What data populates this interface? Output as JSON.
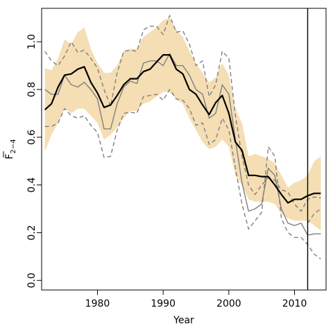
{
  "chart_data": {
    "type": "line",
    "title": "",
    "xlabel": "Year",
    "ylabel": "F",
    "ylabel_overline": true,
    "ylabel_subscript": "2−4",
    "xlim": [
      1971.5,
      2014.8
    ],
    "ylim": [
      -0.04,
      1.14
    ],
    "xticks": [
      1980,
      1990,
      2000,
      2010
    ],
    "yticks": [
      0.0,
      0.2,
      0.4,
      0.6,
      0.8,
      1.0
    ],
    "grid": false,
    "legend": "none",
    "vline": {
      "x": 2012,
      "color": "#000000"
    },
    "colors": {
      "band": "#f5deb3",
      "median": "#000000",
      "grey": "#7f7f7f"
    },
    "x": [
      1972,
      1973,
      1974,
      1975,
      1976,
      1977,
      1978,
      1979,
      1980,
      1981,
      1982,
      1983,
      1984,
      1985,
      1986,
      1987,
      1988,
      1989,
      1990,
      1991,
      1992,
      1993,
      1994,
      1995,
      1996,
      1997,
      1998,
      1999,
      2000,
      2001,
      2002,
      2003,
      2004,
      2005,
      2006,
      2007,
      2008,
      2009,
      2010,
      2011,
      2012,
      2013,
      2014
    ],
    "band": {
      "upper": [
        0.89,
        0.88,
        0.93,
        1.01,
        0.99,
        1.04,
        1.06,
        0.97,
        0.91,
        0.87,
        0.87,
        0.9,
        0.96,
        0.97,
        0.97,
        1.02,
        1.04,
        1.06,
        1.09,
        1.1,
        1.05,
        1.02,
        0.96,
        0.91,
        0.87,
        0.83,
        0.85,
        0.91,
        0.86,
        0.72,
        0.66,
        0.52,
        0.53,
        0.52,
        0.51,
        0.49,
        0.44,
        0.39,
        0.41,
        0.42,
        0.44,
        0.5,
        0.52
      ],
      "lower": [
        0.54,
        0.61,
        0.66,
        0.72,
        0.7,
        0.72,
        0.72,
        0.69,
        0.66,
        0.59,
        0.61,
        0.64,
        0.68,
        0.71,
        0.71,
        0.74,
        0.75,
        0.77,
        0.79,
        0.79,
        0.76,
        0.74,
        0.68,
        0.63,
        0.58,
        0.55,
        0.56,
        0.59,
        0.56,
        0.44,
        0.4,
        0.34,
        0.33,
        0.33,
        0.33,
        0.32,
        0.28,
        0.26,
        0.25,
        0.25,
        0.25,
        0.23,
        0.21
      ]
    },
    "series": [
      {
        "values": [
          0.715,
          0.74,
          0.81,
          0.86,
          0.865,
          0.885,
          0.895,
          0.83,
          0.785,
          0.725,
          0.735,
          0.775,
          0.82,
          0.845,
          0.845,
          0.875,
          0.885,
          0.915,
          0.945,
          0.945,
          0.885,
          0.865,
          0.8,
          0.78,
          0.735,
          0.695,
          0.745,
          0.775,
          0.7,
          0.58,
          0.545,
          0.44,
          0.44,
          0.435,
          0.435,
          0.4,
          0.36,
          0.325,
          0.34,
          0.34,
          0.355,
          0.365,
          0.365
        ],
        "color": "#000000",
        "width": 2.2,
        "dash": ""
      },
      {
        "values": [
          0.8,
          0.78,
          0.78,
          0.86,
          0.82,
          0.81,
          0.83,
          0.8,
          0.76,
          0.635,
          0.635,
          0.74,
          0.81,
          0.835,
          0.825,
          0.91,
          0.92,
          0.92,
          0.9,
          0.95,
          0.9,
          0.9,
          0.86,
          0.8,
          0.78,
          0.68,
          0.7,
          0.82,
          0.78,
          0.59,
          0.41,
          0.29,
          0.3,
          0.32,
          0.47,
          0.44,
          0.3,
          0.24,
          0.23,
          0.24,
          0.19,
          0.195,
          0.195
        ],
        "color": "#7f7f7f",
        "width": 1.4,
        "dash": ""
      },
      {
        "values": [
          0.96,
          0.92,
          0.9,
          0.94,
          1.0,
          0.955,
          0.965,
          0.93,
          0.89,
          0.8,
          0.73,
          0.87,
          0.96,
          0.965,
          0.96,
          1.05,
          1.065,
          1.065,
          1.03,
          1.11,
          1.04,
          1.045,
          0.99,
          0.9,
          0.92,
          0.77,
          0.82,
          0.96,
          0.93,
          0.69,
          0.52,
          0.4,
          0.36,
          0.4,
          0.43,
          0.42,
          0.38,
          0.37,
          0.32,
          0.29,
          0.34,
          0.35,
          0.345
        ],
        "color": "#7f7f7f",
        "width": 1.4,
        "dash": "6,4"
      },
      {
        "values": [
          0.645,
          0.645,
          0.66,
          0.72,
          0.69,
          0.68,
          0.69,
          0.65,
          0.62,
          0.515,
          0.52,
          0.63,
          0.7,
          0.705,
          0.7,
          0.77,
          0.775,
          0.78,
          0.755,
          0.8,
          0.76,
          0.755,
          0.72,
          0.65,
          0.66,
          0.57,
          0.59,
          0.68,
          0.63,
          0.47,
          0.32,
          0.215,
          0.25,
          0.285,
          0.56,
          0.52,
          0.26,
          0.2,
          0.18,
          0.18,
          0.15,
          0.11,
          0.09
        ],
        "color": "#7f7f7f",
        "width": 1.4,
        "dash": "6,4"
      },
      {
        "values": [
          null,
          null,
          null,
          null,
          null,
          null,
          null,
          null,
          null,
          null,
          null,
          null,
          null,
          null,
          null,
          null,
          null,
          null,
          null,
          null,
          null,
          null,
          null,
          null,
          null,
          null,
          null,
          null,
          null,
          null,
          null,
          null,
          null,
          null,
          null,
          null,
          null,
          null,
          null,
          null,
          0.24,
          0.28,
          0.3
        ],
        "color": "#7f7f7f",
        "width": 1.4,
        "dash": "6,4"
      }
    ]
  }
}
